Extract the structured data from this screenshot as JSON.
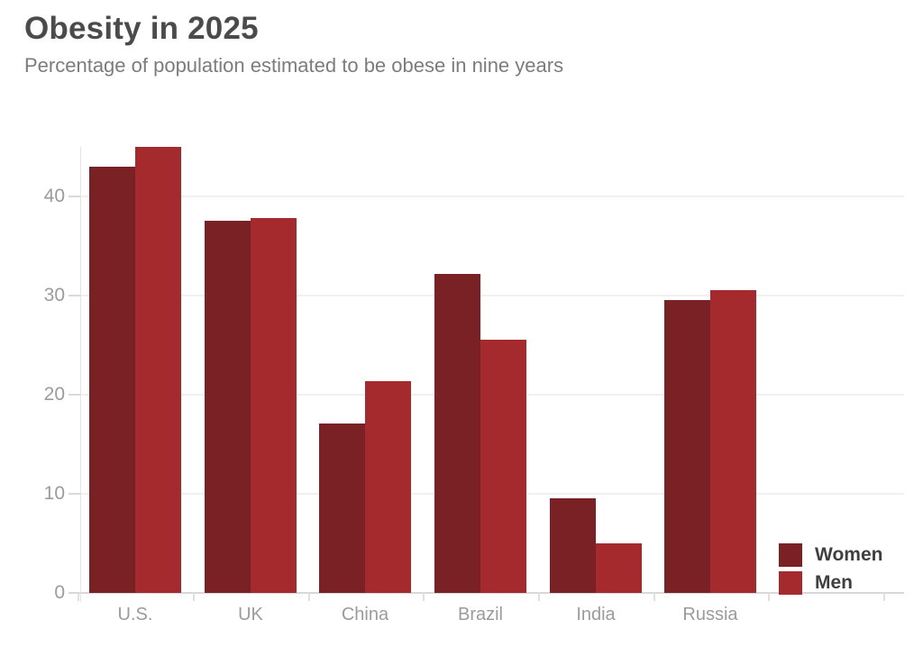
{
  "header": {
    "title": "Obesity in 2025",
    "subtitle": "Percentage of population estimated to be obese in nine years"
  },
  "chart_data": {
    "type": "bar",
    "title": "Obesity in 2025",
    "subtitle": "Percentage of population estimated to be obese in nine years",
    "categories": [
      "U.S.",
      "UK",
      "China",
      "Brazil",
      "India",
      "Russia"
    ],
    "series": [
      {
        "name": "Women",
        "color": "#7a2125",
        "values": [
          43,
          37.5,
          17.1,
          32.2,
          9.5,
          29.5
        ]
      },
      {
        "name": "Men",
        "color": "#a52a2d",
        "values": [
          45,
          37.8,
          21.4,
          25.5,
          5,
          30.5
        ]
      }
    ],
    "xlabel": "",
    "ylabel": "",
    "ylim": [
      0,
      48.5
    ],
    "yticks": [
      0,
      10,
      20,
      30,
      40
    ],
    "grid": true,
    "legend_position": "bottom-right"
  },
  "colors": {
    "title_text": "#4b4b4b",
    "subtitle_text": "#7c7c7c",
    "axis_label": "#9b9b9b",
    "gridline": "#f0f0f0",
    "baseline": "#d8d8d8",
    "legend_text": "#3f3f3f",
    "background": "#ffffff"
  }
}
